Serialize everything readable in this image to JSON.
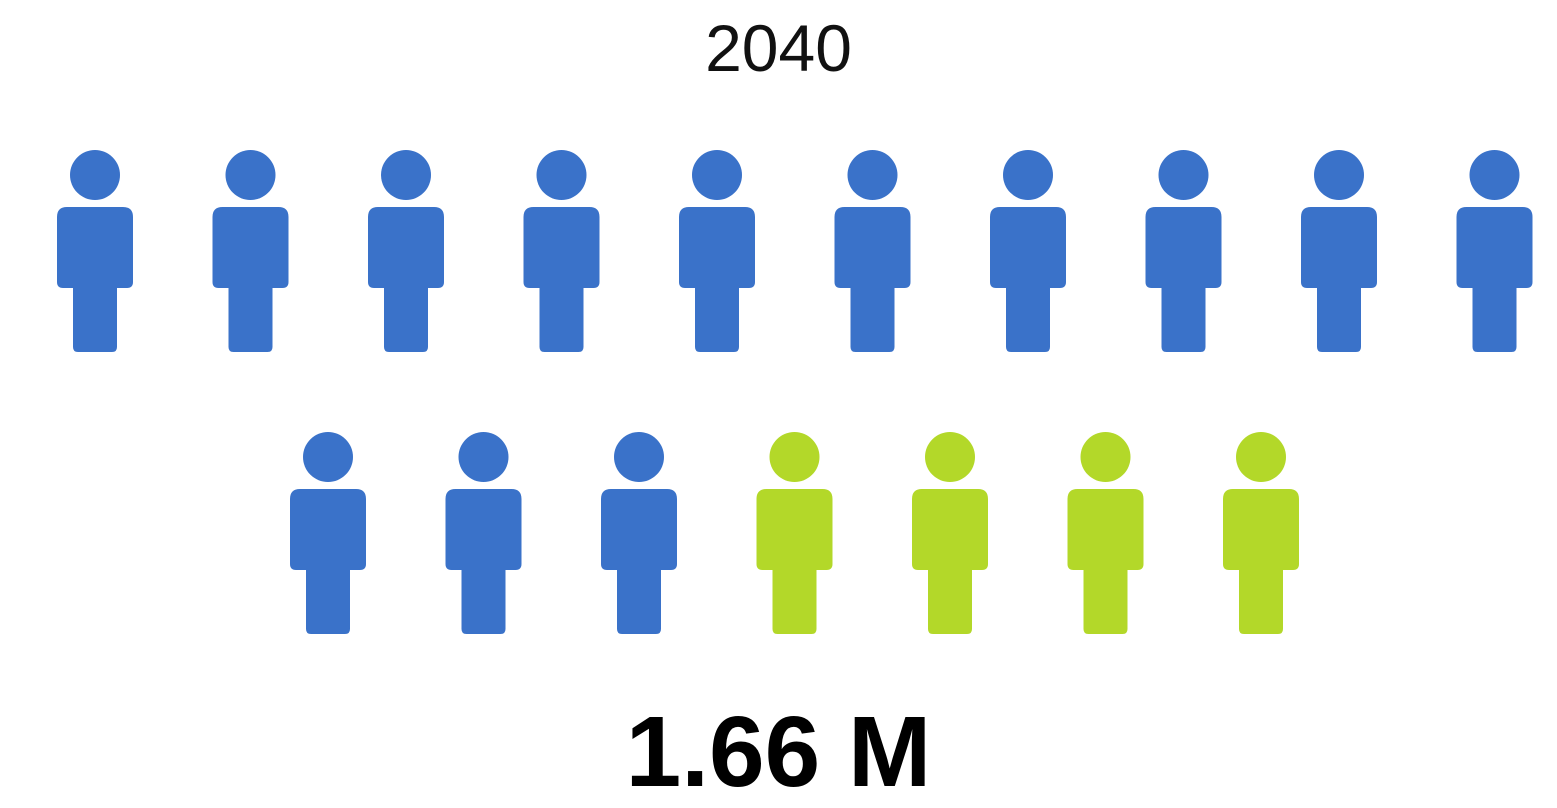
{
  "chart_data": {
    "type": "pictogram",
    "title": "2040",
    "total_label": "1.66 M",
    "icon": "person-icon",
    "units_total": 17,
    "series": [
      {
        "count": 13,
        "color": "#3A72C9"
      },
      {
        "count": 4,
        "color": "#B3D829"
      }
    ],
    "rows": [
      10,
      7
    ]
  }
}
